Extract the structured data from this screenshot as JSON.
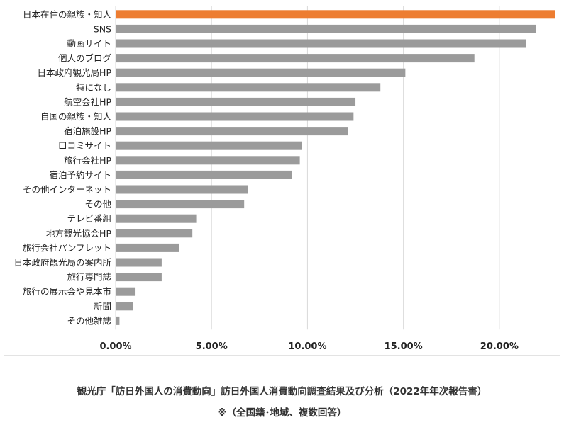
{
  "chart_data": {
    "type": "bar",
    "orientation": "horizontal",
    "categories": [
      "日本在住の親族・知人",
      "SNS",
      "動画サイト",
      "個人のブログ",
      "日本政府観光局HP",
      "特になし",
      "航空会社HP",
      "自国の親族・知人",
      "宿泊施設HP",
      "口コミサイト",
      "旅行会社HP",
      "宿泊予約サイト",
      "その他インターネット",
      "その他",
      "テレビ番組",
      "地方観光協会HP",
      "旅行会社パンフレット",
      "日本政府観光局の案内所",
      "旅行専門誌",
      "旅行の展示会や見本市",
      "新聞",
      "その他雑誌"
    ],
    "values": [
      22.9,
      21.9,
      21.4,
      18.7,
      15.1,
      13.8,
      12.5,
      12.4,
      12.1,
      9.7,
      9.6,
      9.2,
      6.9,
      6.7,
      4.2,
      4.0,
      3.3,
      2.4,
      2.4,
      1.0,
      0.9,
      0.2
    ],
    "highlight_index": 0,
    "xlim": [
      0,
      23
    ],
    "x_ticks": [
      0,
      5,
      10,
      15,
      20
    ],
    "x_tick_labels": [
      "0.00%",
      "5.00%",
      "10.00%",
      "15.00%",
      "20.00%"
    ],
    "grid": "vertical",
    "colors": {
      "highlight": "#ed7d31",
      "bar": "#9b9b9b",
      "grid": "#d9d9d9",
      "text": "#222222"
    },
    "title": "",
    "xlabel": "",
    "ylabel": ""
  },
  "caption": {
    "source": "観光庁「訪日外国人の消費動向」訪日外国人消費動向調査結果及び分析（2022年年次報告書）",
    "note": "※（全国籍･地域、複数回答）"
  }
}
